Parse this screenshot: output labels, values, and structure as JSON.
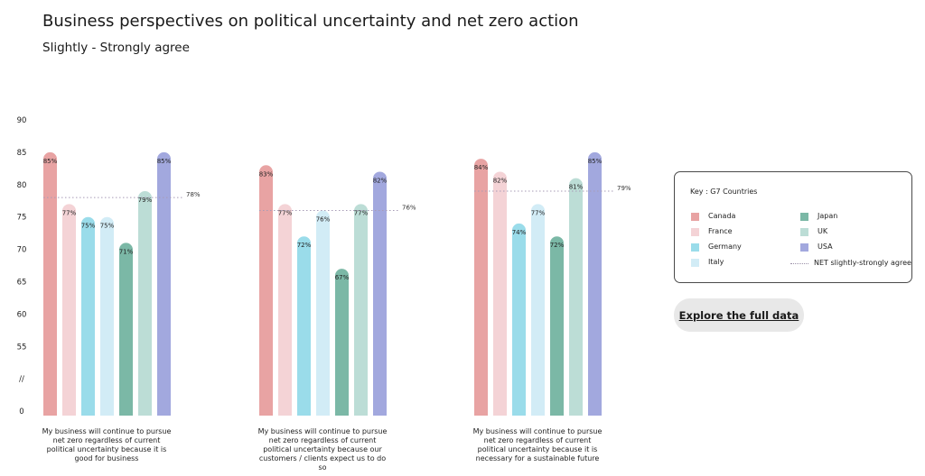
{
  "title": "Business perspectives on political uncertainty and net zero action",
  "subtitle": "Slightly - Strongly agree",
  "legend": {
    "title": "Key : G7 Countries",
    "avg_label": "NET slightly-strongly agree"
  },
  "explore_button": "Explore the full data",
  "chart_data": {
    "type": "bar",
    "title": "Business perspectives on political uncertainty and net zero action",
    "subtitle": "Slightly - Strongly agree",
    "y_ticks": [
      "90",
      "85",
      "80",
      "75",
      "70",
      "65",
      "60",
      "55",
      "//",
      "0"
    ],
    "ylim": [
      55,
      90
    ],
    "axis_break": true,
    "grid": false,
    "legend_position": "right",
    "series": [
      {
        "name": "Canada",
        "color": "#E8A3A3"
      },
      {
        "name": "France",
        "color": "#F4D3D6"
      },
      {
        "name": "Germany",
        "color": "#9ADCEA"
      },
      {
        "name": "Italy",
        "color": "#D2ECF6"
      },
      {
        "name": "Japan",
        "color": "#7BB8A6"
      },
      {
        "name": "UK",
        "color": "#BCDDD6"
      },
      {
        "name": "USA",
        "color": "#A2A8DE"
      }
    ],
    "groups": [
      {
        "label": "My business will continue to pursue net zero regardless of current political uncertainty because it is good for business",
        "values": [
          85,
          77,
          75,
          75,
          71,
          79,
          85
        ],
        "value_labels": [
          "85%",
          "77%",
          "75%",
          "75%",
          "71%",
          "79%",
          "85%"
        ],
        "net": 78,
        "net_label": "78%"
      },
      {
        "label": "My business will continue to pursue net zero regardless of current political uncertainty because our customers / clients expect us to do so",
        "values": [
          83,
          77,
          72,
          76,
          67,
          77,
          82
        ],
        "value_labels": [
          "83%",
          "77%",
          "72%",
          "76%",
          "67%",
          "77%",
          "82%"
        ],
        "net": 76,
        "net_label": "76%"
      },
      {
        "label": "My business will continue to pursue net zero regardless of current political uncertainty because it is necessary for a sustainable future",
        "values": [
          84,
          82,
          74,
          77,
          72,
          81,
          85
        ],
        "value_labels": [
          "84%",
          "82%",
          "74%",
          "77%",
          "72%",
          "81%",
          "85%"
        ],
        "net": 79,
        "net_label": "79%"
      }
    ]
  }
}
